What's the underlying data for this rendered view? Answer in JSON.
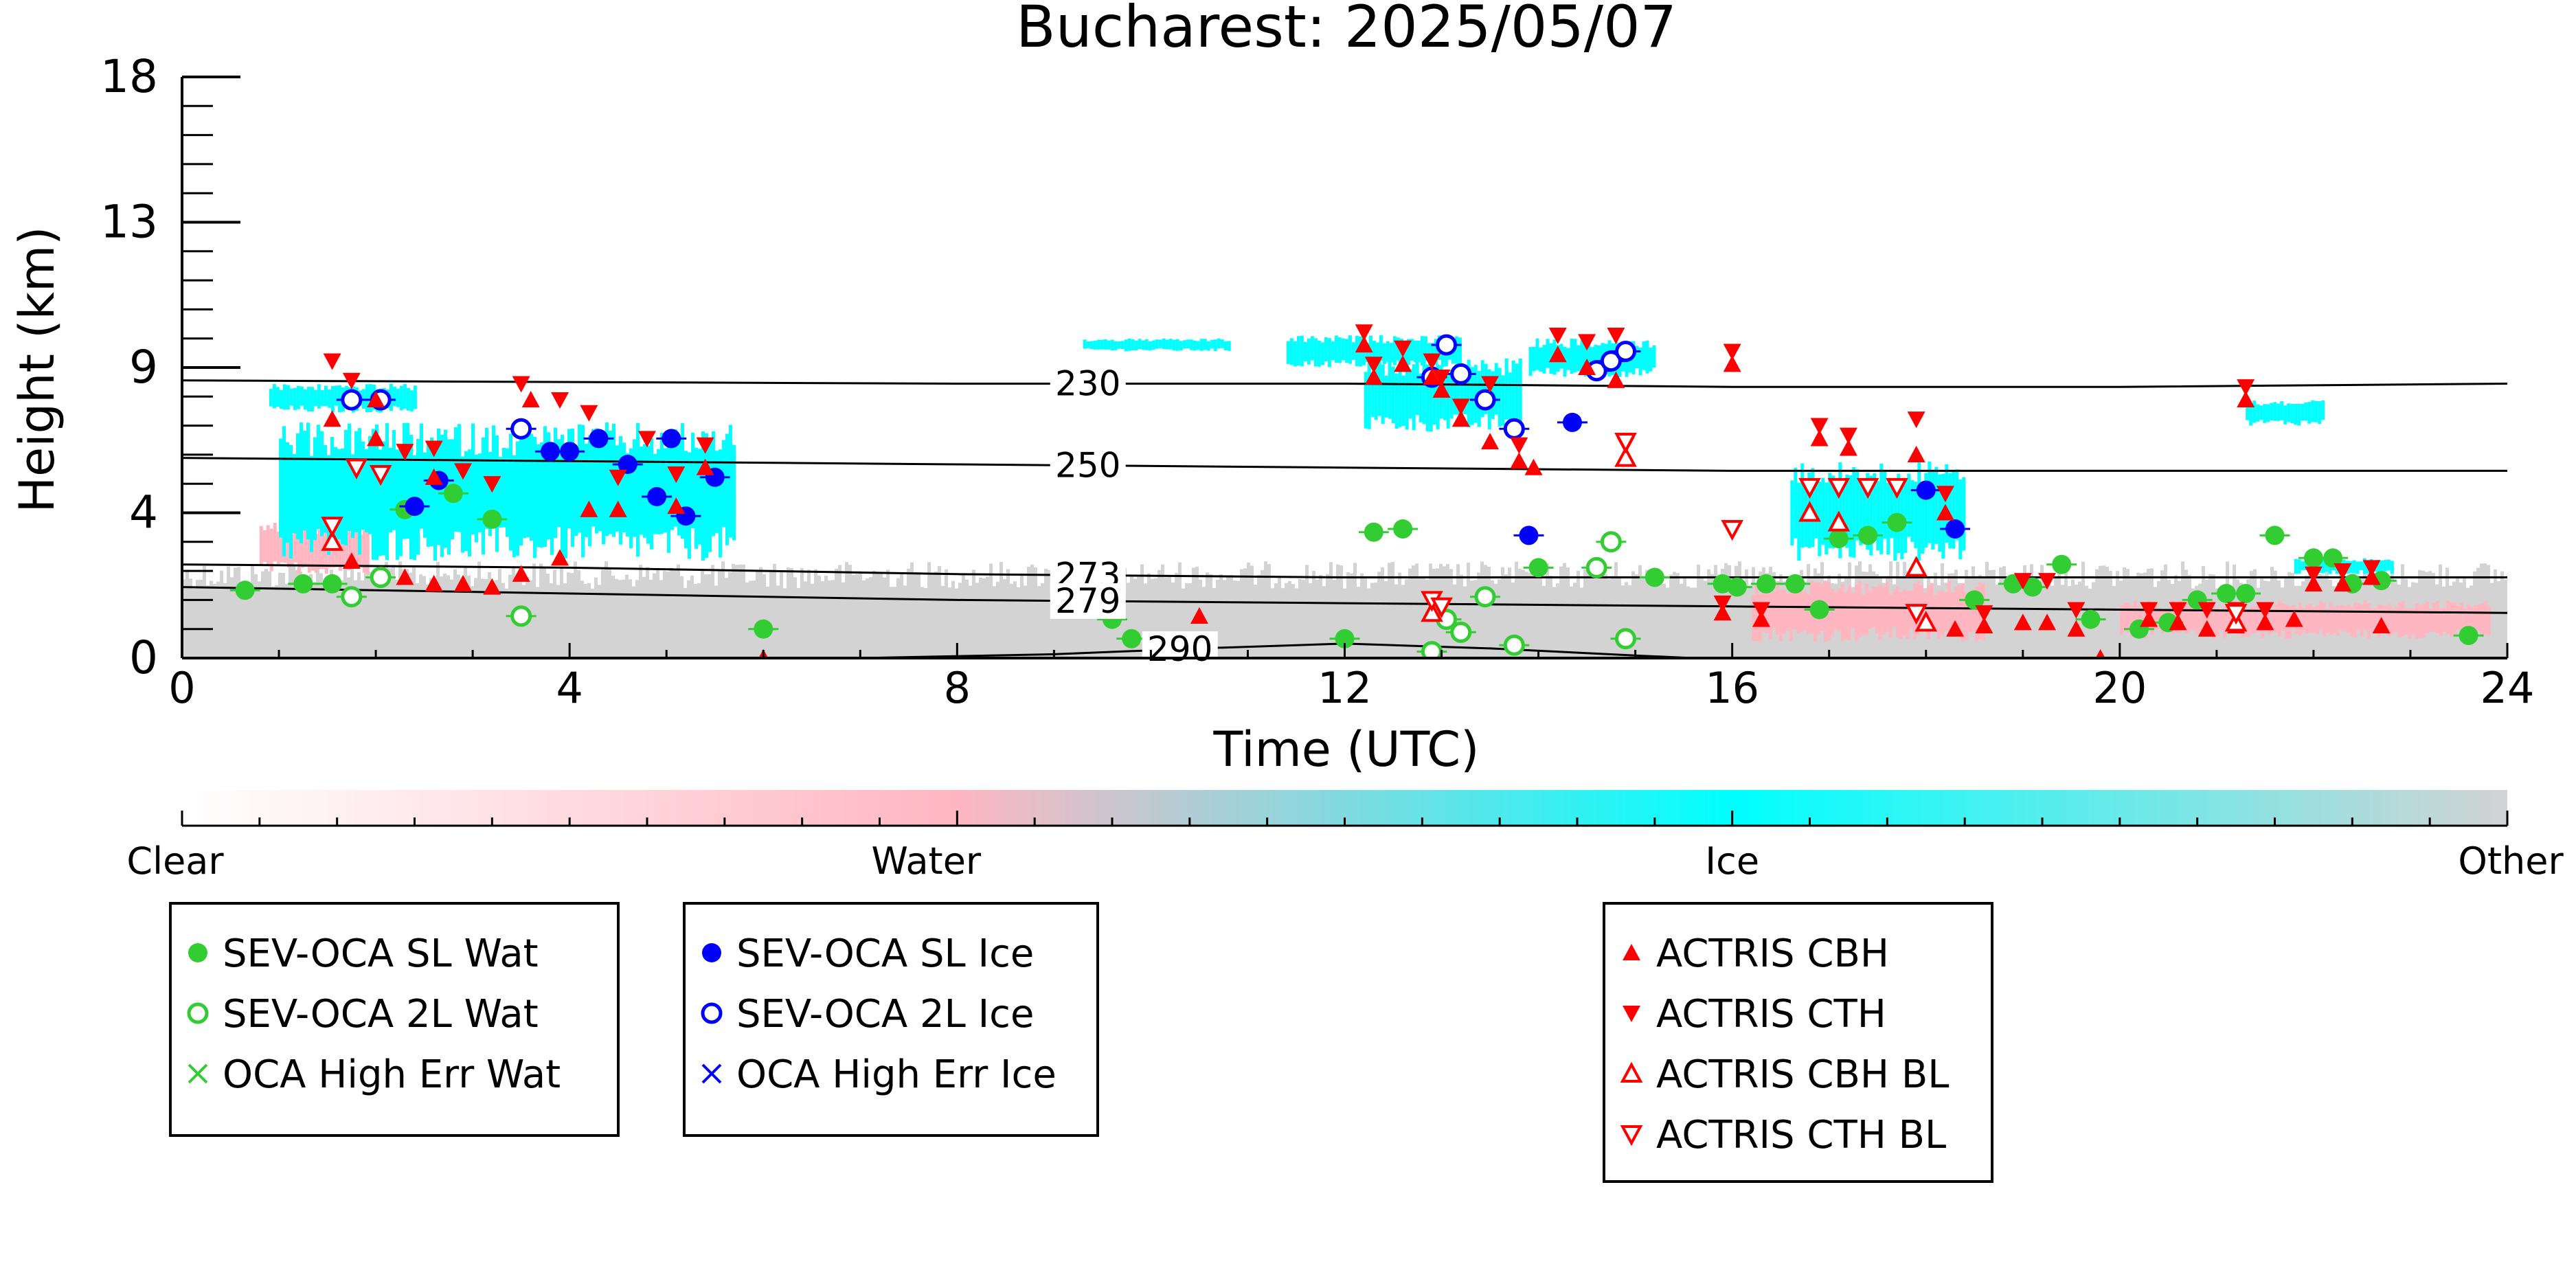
{
  "chart_data": {
    "type": "scatter",
    "title": "Bucharest: 2025/05/07",
    "xlabel": "Time (UTC)",
    "ylabel": "Height (km)",
    "xlim": [
      0,
      24
    ],
    "ylim": [
      0,
      18
    ],
    "x_ticks": [
      0,
      4,
      8,
      12,
      16,
      20,
      24
    ],
    "y_tick_positions": [
      0,
      4.5,
      9,
      13.5,
      18
    ],
    "y_tick_labels": [
      "0",
      "4",
      "9",
      "13",
      "18"
    ],
    "grid": false,
    "colorbar": {
      "labels": [
        "Clear",
        "Water",
        "Ice",
        "Other"
      ],
      "colors": [
        "#ffffff",
        "#ffb6c1",
        "#00ffff",
        "#d3d3d3"
      ]
    },
    "colors": {
      "water": "#32cd32",
      "ice": "#0000ff",
      "actris": "#ff0000",
      "cloud_ice": "#00ffff",
      "cloud_water": "#ffb6c1",
      "cloud_other": "#d3d3d3"
    },
    "isotherms": [
      {
        "label": "230",
        "points": [
          [
            0,
            8.6
          ],
          [
            8,
            8.5
          ],
          [
            12,
            8.5
          ],
          [
            16,
            8.4
          ],
          [
            20,
            8.4
          ],
          [
            24,
            8.5
          ]
        ]
      },
      {
        "label": "250",
        "points": [
          [
            0,
            6.2
          ],
          [
            8,
            6.0
          ],
          [
            12,
            5.9
          ],
          [
            16,
            5.8
          ],
          [
            20,
            5.8
          ],
          [
            24,
            5.8
          ]
        ]
      },
      {
        "label": "273",
        "points": [
          [
            0,
            2.9
          ],
          [
            4,
            2.8
          ],
          [
            8,
            2.6
          ],
          [
            12,
            2.5
          ],
          [
            16,
            2.5
          ],
          [
            20,
            2.5
          ],
          [
            24,
            2.5
          ]
        ]
      },
      {
        "label": "279",
        "points": [
          [
            0,
            2.2
          ],
          [
            4,
            2.0
          ],
          [
            8,
            1.8
          ],
          [
            12,
            1.7
          ],
          [
            16,
            1.6
          ],
          [
            20,
            1.5
          ],
          [
            22,
            1.45
          ],
          [
            24,
            1.4
          ]
        ]
      },
      {
        "label": "290",
        "points": [
          [
            7,
            0
          ],
          [
            9,
            0.12
          ],
          [
            10.5,
            0.3
          ],
          [
            12,
            0.45
          ],
          [
            13.5,
            0.3
          ],
          [
            15,
            0.08
          ],
          [
            15.6,
            0
          ]
        ]
      }
    ],
    "cloud_regions": [
      {
        "class": "Other",
        "x": [
          0,
          24
        ],
        "y": [
          0,
          3
        ]
      },
      {
        "class": "Water",
        "x": [
          0.8,
          1.9
        ],
        "y": [
          2.6,
          4.2
        ]
      },
      {
        "class": "Water",
        "x": [
          16.2,
          18.6
        ],
        "y": [
          0.5,
          2.4
        ]
      },
      {
        "class": "Water",
        "x": [
          20,
          23.8
        ],
        "y": [
          0.6,
          1.8
        ]
      },
      {
        "class": "Ice",
        "x": [
          0.9,
          2.4
        ],
        "y": [
          7.6,
          8.5
        ]
      },
      {
        "class": "Ice",
        "x": [
          1.0,
          5.7
        ],
        "y": [
          3.0,
          7.3
        ]
      },
      {
        "class": "Ice",
        "x": [
          9.3,
          10.8
        ],
        "y": [
          9.5,
          9.9
        ]
      },
      {
        "class": "Ice",
        "x": [
          11.4,
          13.2
        ],
        "y": [
          9.0,
          10.0
        ]
      },
      {
        "class": "Ice",
        "x": [
          12.2,
          13.8
        ],
        "y": [
          7.0,
          9.3
        ]
      },
      {
        "class": "Ice",
        "x": [
          13.9,
          15.2
        ],
        "y": [
          8.7,
          9.9
        ]
      },
      {
        "class": "Ice",
        "x": [
          16.6,
          18.4
        ],
        "y": [
          3.0,
          6.1
        ]
      },
      {
        "class": "Ice",
        "x": [
          21.8,
          22.8
        ],
        "y": [
          2.6,
          3.1
        ]
      },
      {
        "class": "Ice",
        "x": [
          21.3,
          22.1
        ],
        "y": [
          7.2,
          8.0
        ]
      }
    ],
    "legends": [
      {
        "entries": [
          "SEV-OCA SL Wat",
          "SEV-OCA 2L Wat",
          "OCA High Err Wat"
        ]
      },
      {
        "entries": [
          "SEV-OCA SL Ice",
          "SEV-OCA 2L Ice",
          "OCA High Err Ice"
        ]
      },
      {
        "entries": [
          "ACTRIS CBH",
          "ACTRIS CTH",
          "ACTRIS CBH BL",
          "ACTRIS CTH BL"
        ]
      }
    ],
    "series": [
      {
        "name": "SEV-OCA SL Wat",
        "marker": "filled-circle",
        "color": "#32cd32",
        "points": [
          [
            0.65,
            2.1
          ],
          [
            1.25,
            2.3
          ],
          [
            1.55,
            2.3
          ],
          [
            2.3,
            4.6
          ],
          [
            2.8,
            5.1
          ],
          [
            3.2,
            4.3
          ],
          [
            6.0,
            0.9
          ],
          [
            9.6,
            1.2
          ],
          [
            9.8,
            0.6
          ],
          [
            12.0,
            0.6
          ],
          [
            12.3,
            3.9
          ],
          [
            12.6,
            4.0
          ],
          [
            14.0,
            2.8
          ],
          [
            15.2,
            2.5
          ],
          [
            15.9,
            2.3
          ],
          [
            16.05,
            2.2
          ],
          [
            16.35,
            2.3
          ],
          [
            16.65,
            2.3
          ],
          [
            16.9,
            1.5
          ],
          [
            17.1,
            3.7
          ],
          [
            17.4,
            3.8
          ],
          [
            17.7,
            4.2
          ],
          [
            18.5,
            1.8
          ],
          [
            18.9,
            2.3
          ],
          [
            19.1,
            2.2
          ],
          [
            19.4,
            2.9
          ],
          [
            19.7,
            1.2
          ],
          [
            20.2,
            0.9
          ],
          [
            20.5,
            1.1
          ],
          [
            20.8,
            1.8
          ],
          [
            21.1,
            2.0
          ],
          [
            21.3,
            2.0
          ],
          [
            21.6,
            3.8
          ],
          [
            22.0,
            3.1
          ],
          [
            22.2,
            3.1
          ],
          [
            22.4,
            2.3
          ],
          [
            22.7,
            2.4
          ],
          [
            23.6,
            0.7
          ]
        ]
      },
      {
        "name": "SEV-OCA 2L Wat",
        "marker": "open-circle",
        "color": "#32cd32",
        "points": [
          [
            1.75,
            1.9
          ],
          [
            2.05,
            2.5
          ],
          [
            3.5,
            1.3
          ],
          [
            12.9,
            0.2
          ],
          [
            13.05,
            1.2
          ],
          [
            13.2,
            0.8
          ],
          [
            13.45,
            1.9
          ],
          [
            13.75,
            0.4
          ],
          [
            14.6,
            2.8
          ],
          [
            14.75,
            3.6
          ],
          [
            14.9,
            0.6
          ]
        ]
      },
      {
        "name": "SEV-OCA SL Ice",
        "marker": "filled-circle",
        "color": "#0000ff",
        "points": [
          [
            2.4,
            4.7
          ],
          [
            2.65,
            5.5
          ],
          [
            3.8,
            6.4
          ],
          [
            4.0,
            6.4
          ],
          [
            4.3,
            6.8
          ],
          [
            4.6,
            6.0
          ],
          [
            4.9,
            5.0
          ],
          [
            5.05,
            6.8
          ],
          [
            5.2,
            4.4
          ],
          [
            5.5,
            5.6
          ],
          [
            13.9,
            3.8
          ],
          [
            14.35,
            7.3
          ],
          [
            18.0,
            5.2
          ],
          [
            18.3,
            4.0
          ]
        ]
      },
      {
        "name": "SEV-OCA 2L Ice",
        "marker": "open-circle",
        "color": "#0000ff",
        "points": [
          [
            1.75,
            8.0
          ],
          [
            2.05,
            8.0
          ],
          [
            3.5,
            7.1
          ],
          [
            12.9,
            8.7
          ],
          [
            13.05,
            9.7
          ],
          [
            13.2,
            8.8
          ],
          [
            13.45,
            8.0
          ],
          [
            13.75,
            7.1
          ],
          [
            14.6,
            8.9
          ],
          [
            14.75,
            9.2
          ],
          [
            14.9,
            9.5
          ]
        ]
      },
      {
        "name": "ACTRIS CBH",
        "marker": "triangle-up",
        "color": "#ff0000",
        "points": [
          [
            1.55,
            7.4
          ],
          [
            1.75,
            3.0
          ],
          [
            2.0,
            8.0
          ],
          [
            2.0,
            6.8
          ],
          [
            2.3,
            2.5
          ],
          [
            2.6,
            2.3
          ],
          [
            2.6,
            5.6
          ],
          [
            2.9,
            2.3
          ],
          [
            3.2,
            2.2
          ],
          [
            3.5,
            2.6
          ],
          [
            3.6,
            8.0
          ],
          [
            3.9,
            3.1
          ],
          [
            4.2,
            4.6
          ],
          [
            4.5,
            4.6
          ],
          [
            5.1,
            4.7
          ],
          [
            5.4,
            5.9
          ],
          [
            6.0,
            0.0
          ],
          [
            10.5,
            1.3
          ],
          [
            12.2,
            9.7
          ],
          [
            12.3,
            8.7
          ],
          [
            12.6,
            9.1
          ],
          [
            12.9,
            8.7
          ],
          [
            13.0,
            8.3
          ],
          [
            13.2,
            7.4
          ],
          [
            13.5,
            6.7
          ],
          [
            13.8,
            6.1
          ],
          [
            13.95,
            5.9
          ],
          [
            14.2,
            9.4
          ],
          [
            14.5,
            9.0
          ],
          [
            14.8,
            8.6
          ],
          [
            14.9,
            6.2
          ],
          [
            16.0,
            9.1
          ],
          [
            15.9,
            1.4
          ],
          [
            16.3,
            1.2
          ],
          [
            16.9,
            6.8
          ],
          [
            17.2,
            6.5
          ],
          [
            17.9,
            6.3
          ],
          [
            18.2,
            4.5
          ],
          [
            18.3,
            0.9
          ],
          [
            18.6,
            1.0
          ],
          [
            19.0,
            1.1
          ],
          [
            19.25,
            1.1
          ],
          [
            19.55,
            0.9
          ],
          [
            19.8,
            0.0
          ],
          [
            20.3,
            1.2
          ],
          [
            20.6,
            1.1
          ],
          [
            20.9,
            0.9
          ],
          [
            21.2,
            1.0
          ],
          [
            21.5,
            1.1
          ],
          [
            21.8,
            1.2
          ],
          [
            22.0,
            2.3
          ],
          [
            22.3,
            2.3
          ],
          [
            22.6,
            2.5
          ],
          [
            22.7,
            1.0
          ],
          [
            21.3,
            8.0
          ]
        ]
      },
      {
        "name": "ACTRIS CTH",
        "marker": "triangle-down",
        "color": "#ff0000",
        "points": [
          [
            1.55,
            9.2
          ],
          [
            1.75,
            8.6
          ],
          [
            2.3,
            6.4
          ],
          [
            2.6,
            6.5
          ],
          [
            2.9,
            5.8
          ],
          [
            3.2,
            5.4
          ],
          [
            3.5,
            8.5
          ],
          [
            3.9,
            8.0
          ],
          [
            4.2,
            7.6
          ],
          [
            4.5,
            5.6
          ],
          [
            4.8,
            6.8
          ],
          [
            5.1,
            5.7
          ],
          [
            5.4,
            6.6
          ],
          [
            12.2,
            10.1
          ],
          [
            12.3,
            9.1
          ],
          [
            12.6,
            9.6
          ],
          [
            12.9,
            9.2
          ],
          [
            13.0,
            8.7
          ],
          [
            13.2,
            7.8
          ],
          [
            13.5,
            8.5
          ],
          [
            13.8,
            6.6
          ],
          [
            14.2,
            10.0
          ],
          [
            14.5,
            9.8
          ],
          [
            14.8,
            10.0
          ],
          [
            14.9,
            6.6
          ],
          [
            16.0,
            9.5
          ],
          [
            15.9,
            1.7
          ],
          [
            16.3,
            1.5
          ],
          [
            16.9,
            7.2
          ],
          [
            17.2,
            6.9
          ],
          [
            17.9,
            7.4
          ],
          [
            18.2,
            5.1
          ],
          [
            18.6,
            1.4
          ],
          [
            19.0,
            2.4
          ],
          [
            19.25,
            2.4
          ],
          [
            19.55,
            1.5
          ],
          [
            20.3,
            1.5
          ],
          [
            20.6,
            1.5
          ],
          [
            20.9,
            1.5
          ],
          [
            21.2,
            1.5
          ],
          [
            21.5,
            1.5
          ],
          [
            22.0,
            2.6
          ],
          [
            22.3,
            2.7
          ],
          [
            22.6,
            2.8
          ],
          [
            21.3,
            8.4
          ]
        ]
      },
      {
        "name": "ACTRIS CBH BL",
        "marker": "open-triangle-up",
        "color": "#ff0000",
        "points": [
          [
            1.55,
            3.6
          ],
          [
            12.9,
            1.4
          ],
          [
            14.9,
            6.2
          ],
          [
            16.8,
            4.5
          ],
          [
            17.1,
            4.2
          ],
          [
            17.9,
            2.8
          ],
          [
            18.0,
            1.1
          ],
          [
            21.2,
            1.1
          ]
        ]
      },
      {
        "name": "ACTRIS CTH BL",
        "marker": "open-triangle-down",
        "color": "#ff0000",
        "points": [
          [
            1.55,
            4.1
          ],
          [
            1.8,
            5.9
          ],
          [
            2.05,
            5.7
          ],
          [
            12.9,
            1.8
          ],
          [
            13.0,
            1.6
          ],
          [
            14.9,
            6.7
          ],
          [
            16.0,
            4.0
          ],
          [
            16.8,
            5.3
          ],
          [
            17.1,
            5.3
          ],
          [
            17.4,
            5.3
          ],
          [
            17.7,
            5.3
          ],
          [
            17.9,
            1.4
          ],
          [
            21.2,
            1.4
          ]
        ]
      }
    ]
  }
}
